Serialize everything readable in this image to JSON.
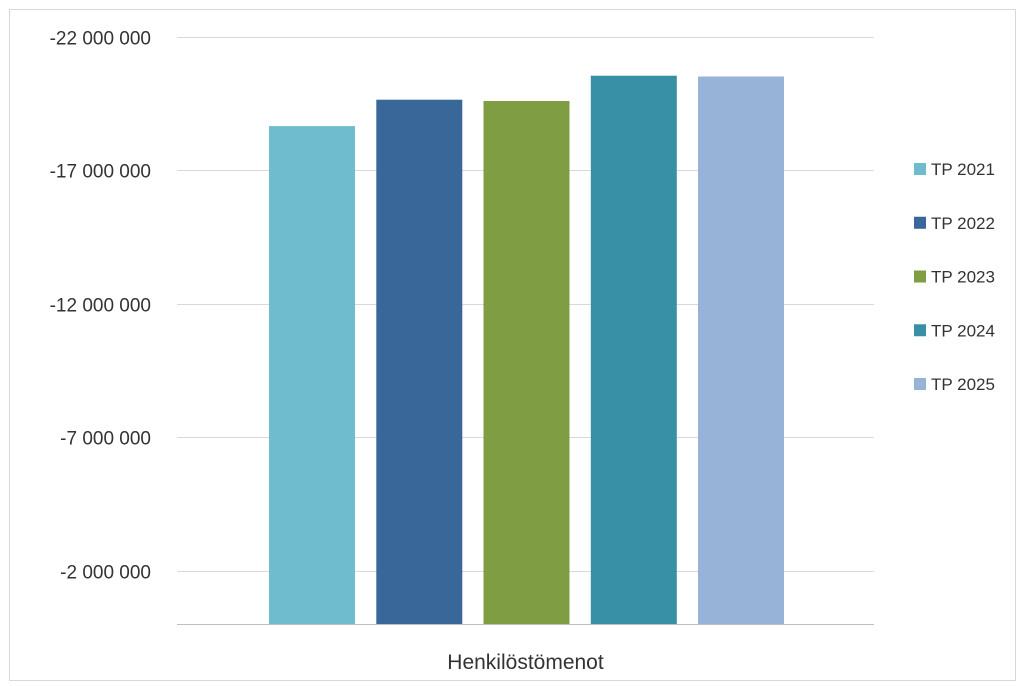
{
  "chart_data": {
    "type": "bar",
    "title": "",
    "xlabel": "",
    "ylabel": "",
    "categories": [
      "Henkilöstömenot"
    ],
    "series": [
      {
        "name": "TP 2021",
        "values": [
          -18660000
        ],
        "color": "#70bccf"
      },
      {
        "name": "TP 2022",
        "values": [
          -19650000
        ],
        "color": "#3a6799"
      },
      {
        "name": "TP 2023",
        "values": [
          -19600000
        ],
        "color": "#7f9d42"
      },
      {
        "name": "TP 2024",
        "values": [
          -20550000
        ],
        "color": "#3890a6"
      },
      {
        "name": "TP 2025",
        "values": [
          -20520000
        ],
        "color": "#97b3d8"
      }
    ],
    "y_axis": {
      "reversed": true,
      "ylim": [
        0,
        -22000000
      ],
      "ticks": [
        -2000000,
        -7000000,
        -12000000,
        -17000000,
        -22000000
      ],
      "tick_labels": [
        "-2 000 000",
        "-7 000 000",
        "-12 000 000",
        "-17 000 000",
        "-22 000 000"
      ]
    },
    "grid": true,
    "legend_position": "right"
  }
}
